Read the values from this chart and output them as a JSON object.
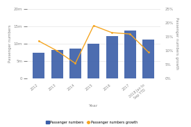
{
  "categories": [
    "2012",
    "2013",
    "2014",
    "2015",
    "2016",
    "2017",
    "2018 Jan to\nSep YTD"
  ],
  "bar_values": [
    7.5,
    8.3,
    8.7,
    10.1,
    12.2,
    13.8,
    11.3
  ],
  "line_values": [
    13.5,
    10.0,
    5.5,
    19.0,
    16.5,
    16.0,
    9.5
  ],
  "bar_color": "#3a5da8",
  "line_color": "#f5a623",
  "ylim_left": [
    0,
    20
  ],
  "ylim_right": [
    0,
    25
  ],
  "yticks_left": [
    0,
    5,
    10,
    15,
    20
  ],
  "yticks_right": [
    0,
    5,
    10,
    15,
    20,
    25
  ],
  "ytick_labels_left": [
    "0",
    "5m",
    "10m",
    "15m",
    "20m"
  ],
  "ytick_labels_right": [
    "0%",
    "5%",
    "10%",
    "15%",
    "20%",
    "25%"
  ],
  "ylabel_left": "Passenger numbers",
  "ylabel_right": "Passenger numbers growth",
  "xlabel": "Year",
  "legend_bar": "Passenger numbers",
  "legend_line": "Passenger numbers growth",
  "bg_color": "#ffffff",
  "grid_color": "#dddddd"
}
